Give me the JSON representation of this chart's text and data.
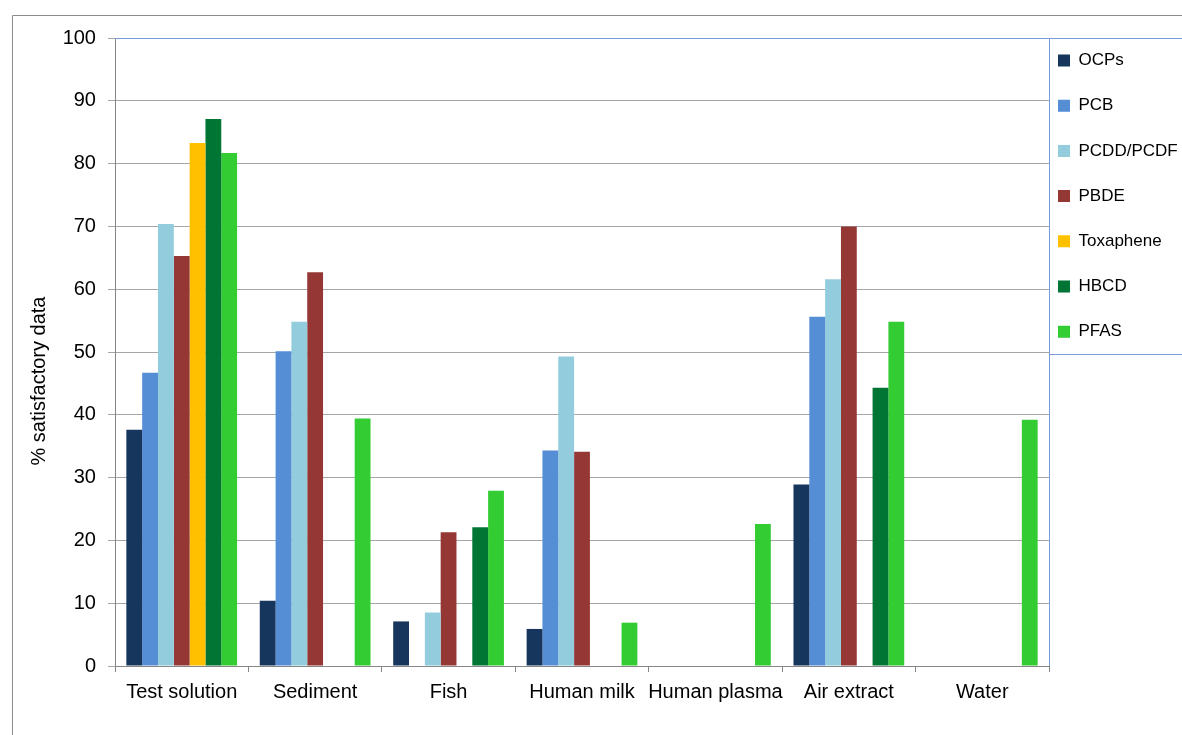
{
  "chart_data": {
    "type": "bar",
    "ylabel": "% satisfactory data",
    "categories": [
      "Test solution",
      "Sediment",
      "Fish",
      "Human milk",
      "Human plasma",
      "Air extract",
      "Water"
    ],
    "series": [
      {
        "name": "OCPs",
        "color": "#17365d",
        "values": [
          37.6,
          10.4,
          7.1,
          5.9,
          null,
          28.9,
          null
        ]
      },
      {
        "name": "PCB",
        "color": "#558ed5",
        "values": [
          46.7,
          50.1,
          null,
          34.3,
          null,
          55.6,
          null
        ]
      },
      {
        "name": "PCDD/PCDF",
        "color": "#93cddd",
        "values": [
          70.4,
          54.8,
          8.5,
          49.3,
          null,
          61.6,
          null
        ]
      },
      {
        "name": "PBDE",
        "color": "#953735",
        "values": [
          65.3,
          62.7,
          21.3,
          34.1,
          null,
          70.0,
          null
        ]
      },
      {
        "name": "Toxaphene",
        "color": "#ffc000",
        "values": [
          83.3,
          null,
          null,
          null,
          null,
          null,
          null
        ]
      },
      {
        "name": "HBCD",
        "color": "#007534",
        "values": [
          87.1,
          null,
          22.1,
          null,
          null,
          44.3,
          null
        ]
      },
      {
        "name": "PFAS",
        "color": "#33cc33",
        "values": [
          81.7,
          39.4,
          27.9,
          6.9,
          22.6,
          54.8,
          39.2
        ]
      }
    ],
    "ylim": [
      0,
      100
    ],
    "yticks": [
      0,
      10,
      20,
      30,
      40,
      50,
      60,
      70,
      80,
      90,
      100
    ],
    "grid": "y",
    "legend": "top right"
  }
}
